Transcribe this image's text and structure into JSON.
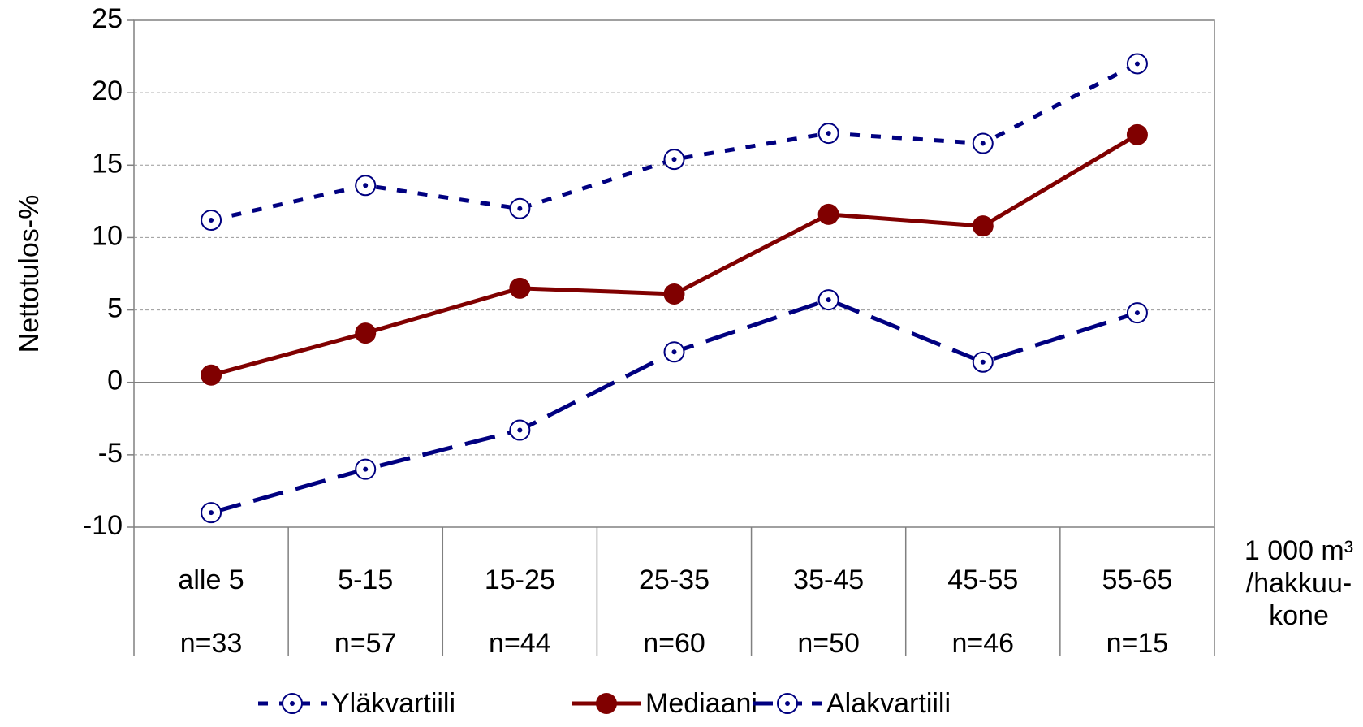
{
  "chart_data": {
    "type": "line",
    "ylabel": "Nettotulos-%",
    "xlabel_lines": [
      "1 000 m³",
      "/hakkuu-",
      "kone"
    ],
    "categories": [
      "alle 5",
      "5-15",
      "15-25",
      "25-35",
      "35-45",
      "45-55",
      "55-65"
    ],
    "n_labels": [
      "n=33",
      "n=57",
      "n=44",
      "n=60",
      "n=50",
      "n=46",
      "n=15"
    ],
    "series": [
      {
        "name": "Yläkvartiili",
        "color": "#000080",
        "values": [
          11.2,
          13.6,
          12.0,
          15.4,
          17.2,
          16.5,
          22.0
        ]
      },
      {
        "name": "Mediaani",
        "color": "#800000",
        "values": [
          0.5,
          3.4,
          6.5,
          6.1,
          11.6,
          10.8,
          17.1
        ]
      },
      {
        "name": "Alakvartiili",
        "color": "#000080",
        "values": [
          -9.0,
          -6.0,
          -3.3,
          2.1,
          5.7,
          1.4,
          4.8
        ]
      }
    ],
    "ylim": [
      -10,
      25
    ],
    "yticks": [
      -10,
      -5,
      0,
      5,
      10,
      15,
      20,
      25
    ],
    "grid": true,
    "legend": "bottom"
  }
}
